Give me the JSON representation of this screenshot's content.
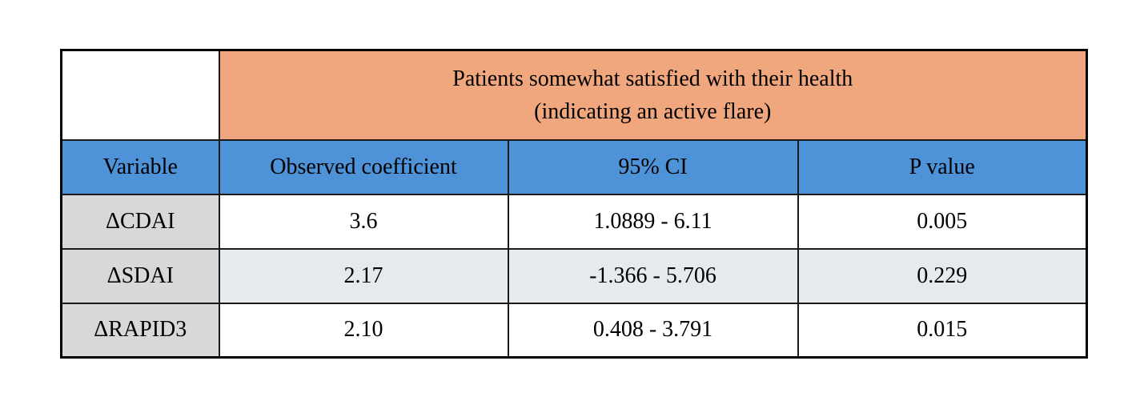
{
  "table": {
    "group_header": {
      "line1": "Patients somewhat satisfied with their health",
      "line2": "(indicating an active flare)"
    },
    "columns": {
      "variable": "Variable",
      "coefficient": "Observed coefficient",
      "ci": "95% CI",
      "p": "P value"
    },
    "rows": [
      {
        "variable": "ΔCDAI",
        "coefficient": "3.6",
        "ci": "1.0889 - 6.11",
        "p": "0.005"
      },
      {
        "variable": "ΔSDAI",
        "coefficient": "2.17",
        "ci": "-1.366 - 5.706",
        "p": "0.229"
      },
      {
        "variable": "ΔRAPID3",
        "coefficient": "2.10",
        "ci": "0.408 - 3.791",
        "p": "0.015"
      }
    ],
    "colors": {
      "group_header_bg": "#f0a77e",
      "column_header_bg": "#4e92d8",
      "row_label_bg": "#d8d8d8",
      "alt_row_bg": "#e6eaee",
      "border": "#1a1a1a",
      "text": "#000000"
    }
  },
  "chart_data": {
    "type": "table",
    "title": "Patients somewhat satisfied with their health (indicating an active flare)",
    "columns": [
      "Variable",
      "Observed coefficient",
      "95% CI",
      "P value"
    ],
    "rows": [
      [
        "ΔCDAI",
        "3.6",
        "1.0889 - 6.11",
        "0.005"
      ],
      [
        "ΔSDAI",
        "2.17",
        "-1.366 - 5.706",
        "0.229"
      ],
      [
        "ΔRAPID3",
        "2.10",
        "0.408 - 3.791",
        "0.015"
      ]
    ]
  }
}
